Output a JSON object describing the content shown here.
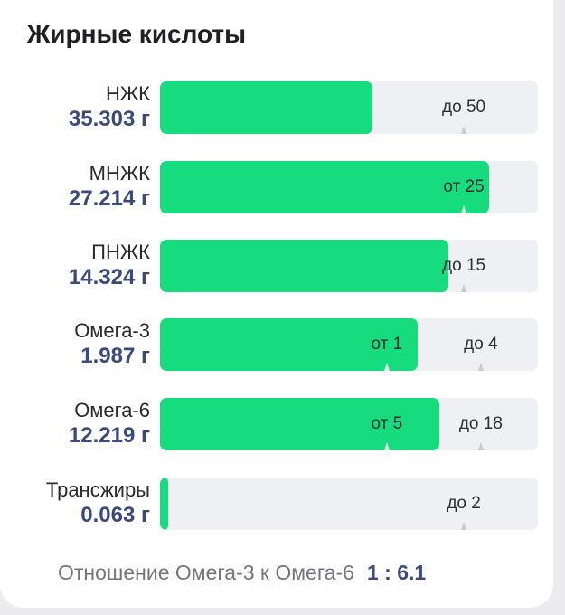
{
  "title": "Жирные кислоты",
  "rows": [
    {
      "name": "НЖК",
      "value": "35.303 г",
      "fill": 0.562,
      "marks": [
        {
          "label": "до 50",
          "pos": 0.804
        }
      ]
    },
    {
      "name": "МНЖК",
      "value": "27.214 г",
      "fill": 0.871,
      "marks": [
        {
          "label": "от 25",
          "pos": 0.804
        }
      ]
    },
    {
      "name": "ПНЖК",
      "value": "14.324 г",
      "fill": 0.763,
      "marks": [
        {
          "label": "до 15",
          "pos": 0.804
        }
      ]
    },
    {
      "name": "Омега-3",
      "value": "1.987 г",
      "fill": 0.682,
      "marks": [
        {
          "label": "от 1",
          "pos": 0.6
        },
        {
          "label": "до 4",
          "pos": 0.849
        }
      ]
    },
    {
      "name": "Омега-6",
      "value": "12.219 г",
      "fill": 0.739,
      "marks": [
        {
          "label": "от 5",
          "pos": 0.6
        },
        {
          "label": "до 18",
          "pos": 0.849
        }
      ]
    },
    {
      "name": "Трансжиры",
      "value": "0.063 г",
      "fill": 0.022,
      "marks": [
        {
          "label": "до 2",
          "pos": 0.804
        }
      ]
    }
  ],
  "ratio": {
    "label": "Отношение Омега-3 к Омега-6",
    "value": "1 : 6.1"
  },
  "colors": {
    "fill": "#17dc7e",
    "track": "#eff0f3",
    "value": "#3a4a7c"
  }
}
